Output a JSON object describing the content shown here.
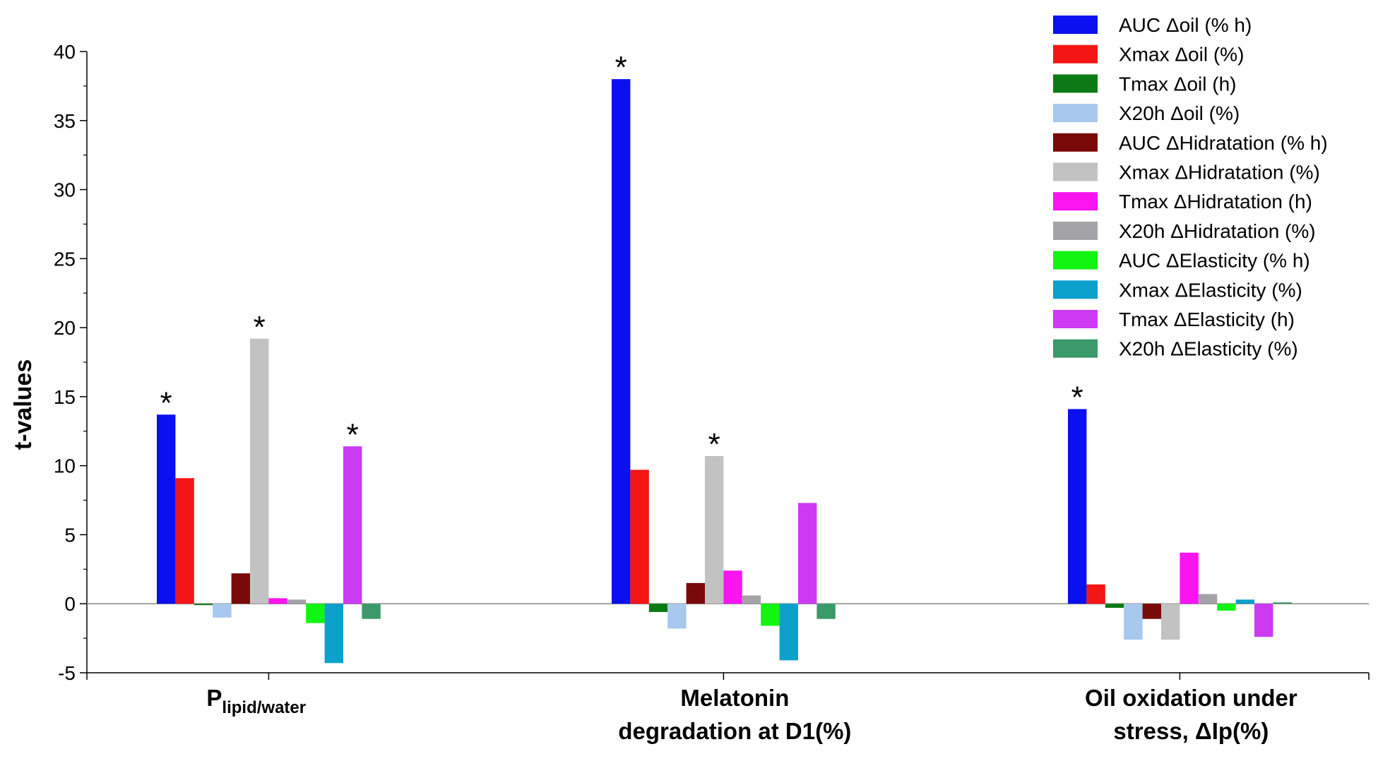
{
  "chart_data": {
    "type": "bar",
    "ylabel": "t-values",
    "ylim": [
      -5,
      40
    ],
    "yticks": [
      "-5",
      "0",
      "5",
      "10",
      "15",
      "20",
      "25",
      "30",
      "35",
      "40"
    ],
    "legend_position": "top-right",
    "categories": [
      {
        "main": "P",
        "sub": "lipid/water"
      },
      {
        "lines": [
          "Melatonin",
          "degradation at D1(%)"
        ]
      },
      {
        "lines": [
          "Oil oxidation under",
          "stress, ΔIp(%)"
        ]
      }
    ],
    "significance_marker": "*",
    "series": [
      {
        "name": "AUC Δoil (% h)",
        "color": "#0A10F0",
        "values": [
          13.7,
          38.0,
          14.1
        ],
        "significant": [
          true,
          true,
          true
        ]
      },
      {
        "name": "Xmax Δoil (%)",
        "color": "#F41515",
        "values": [
          9.1,
          9.7,
          1.4
        ],
        "significant": [
          false,
          false,
          false
        ]
      },
      {
        "name": "Tmax Δoil (h)",
        "color": "#0C7A14",
        "values": [
          -0.1,
          -0.6,
          -0.3
        ],
        "significant": [
          false,
          false,
          false
        ]
      },
      {
        "name": "X20h Δoil (%)",
        "color": "#A9C8EE",
        "values": [
          -1.0,
          -1.8,
          -2.6
        ],
        "significant": [
          false,
          false,
          false
        ]
      },
      {
        "name": "AUC ΔHidratation (% h)",
        "color": "#7A0A0A",
        "values": [
          2.2,
          1.5,
          -1.1
        ],
        "significant": [
          false,
          false,
          false
        ]
      },
      {
        "name": "Xmax ΔHidratation (%)",
        "color": "#C2C2C2",
        "values": [
          19.2,
          10.7,
          -2.6
        ],
        "significant": [
          true,
          true,
          false
        ]
      },
      {
        "name": "Tmax ΔHidratation (h)",
        "color": "#FA14F0",
        "values": [
          0.4,
          2.4,
          3.7
        ],
        "significant": [
          false,
          false,
          false
        ]
      },
      {
        "name": "X20h ΔHidratation (%)",
        "color": "#A3A3A8",
        "values": [
          0.3,
          0.6,
          0.7
        ],
        "significant": [
          false,
          false,
          false
        ]
      },
      {
        "name": "AUC ΔElasticity (% h)",
        "color": "#12F412",
        "values": [
          -1.4,
          -1.6,
          -0.5
        ],
        "significant": [
          false,
          false,
          false
        ]
      },
      {
        "name": "Xmax ΔElasticity (%)",
        "color": "#0CA0CC",
        "values": [
          -4.3,
          -4.1,
          0.3
        ],
        "significant": [
          false,
          false,
          false
        ]
      },
      {
        "name": "Tmax ΔElasticity (h)",
        "color": "#CC3AF2",
        "values": [
          11.4,
          7.3,
          -2.4
        ],
        "significant": [
          true,
          false,
          false
        ]
      },
      {
        "name": "X20h ΔElasticity (%)",
        "color": "#3A9A6A",
        "values": [
          -1.1,
          -1.1,
          0.1
        ],
        "significant": [
          false,
          false,
          false
        ]
      }
    ]
  }
}
